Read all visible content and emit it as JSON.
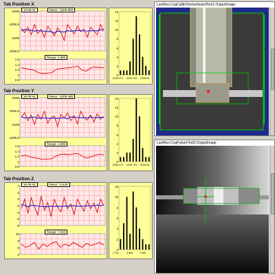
{
  "groups": [
    {
      "title": "Tab Position X",
      "time": "16:08:44",
      "mean": "Mean: -2205.859",
      "range": "Range: 1.895",
      "ts_ticks": [
        "-2205",
        "-2205.5",
        "-2206",
        "-2206.5"
      ],
      "range_ticks": [
        "1.6",
        "1.4",
        "1.2",
        "1",
        "0.8"
      ],
      "hist_ticks": [
        "14",
        "12",
        "10",
        "8",
        "6",
        "4",
        "2",
        "0"
      ],
      "hist_x": [
        "-2206.471",
        "-2205.723",
        "-2205.00"
      ],
      "hist_values": [
        1,
        1,
        1,
        3,
        8,
        13,
        9,
        4,
        2,
        1
      ]
    },
    {
      "title": "Tab Position Y",
      "time": "16:08:44",
      "mean": "Mean: -2205.489",
      "range": "Range: 1.895",
      "ts_ticks": [
        "-2205",
        "-2205.5",
        "-2206",
        "-2206.5"
      ],
      "range_ticks": [
        "1.6",
        "1.4",
        "1.2",
        "1",
        "0.8"
      ],
      "hist_ticks": [
        "14",
        "12",
        "10",
        "8",
        "6",
        "4",
        "2",
        "0"
      ],
      "hist_x": [
        "-2206.471",
        "-2205.723",
        "-2205.00"
      ],
      "hist_values": [
        1,
        1,
        2,
        2,
        5,
        14,
        10,
        3,
        1,
        1
      ]
    },
    {
      "title": "Tab Position Z",
      "time": "16:08:44",
      "mean": "Mean: -3.649",
      "range": "Range: 7.633",
      "ts_ticks": [
        "4",
        "2",
        "0",
        "-2",
        "-4",
        "-6",
        "-8"
      ],
      "range_ticks": [
        "10",
        "8",
        "6",
        "4"
      ],
      "hist_ticks": [
        "12",
        "10",
        "8",
        "6",
        "4",
        "2",
        "0"
      ],
      "hist_x": [
        "-7.701",
        "-3.696",
        "1.595"
      ],
      "hist_values": [
        2,
        5,
        10,
        3,
        11,
        8,
        4,
        2,
        1,
        1
      ]
    }
  ],
  "image_windows": [
    {
      "title": "LastRun.CogCalibCheckerboardTool1.OutputImage"
    },
    {
      "title": "LastRun.CogFixtureTool2.OutputImage"
    }
  ],
  "colors": {
    "panel_bg": "#ffff99",
    "grid": "#ff8080",
    "series_red": "#e00000",
    "series_blue": "#2030d0",
    "bars": "#000000",
    "calib_border": "#00d000",
    "calib_bg": "#1f2a8a"
  }
}
